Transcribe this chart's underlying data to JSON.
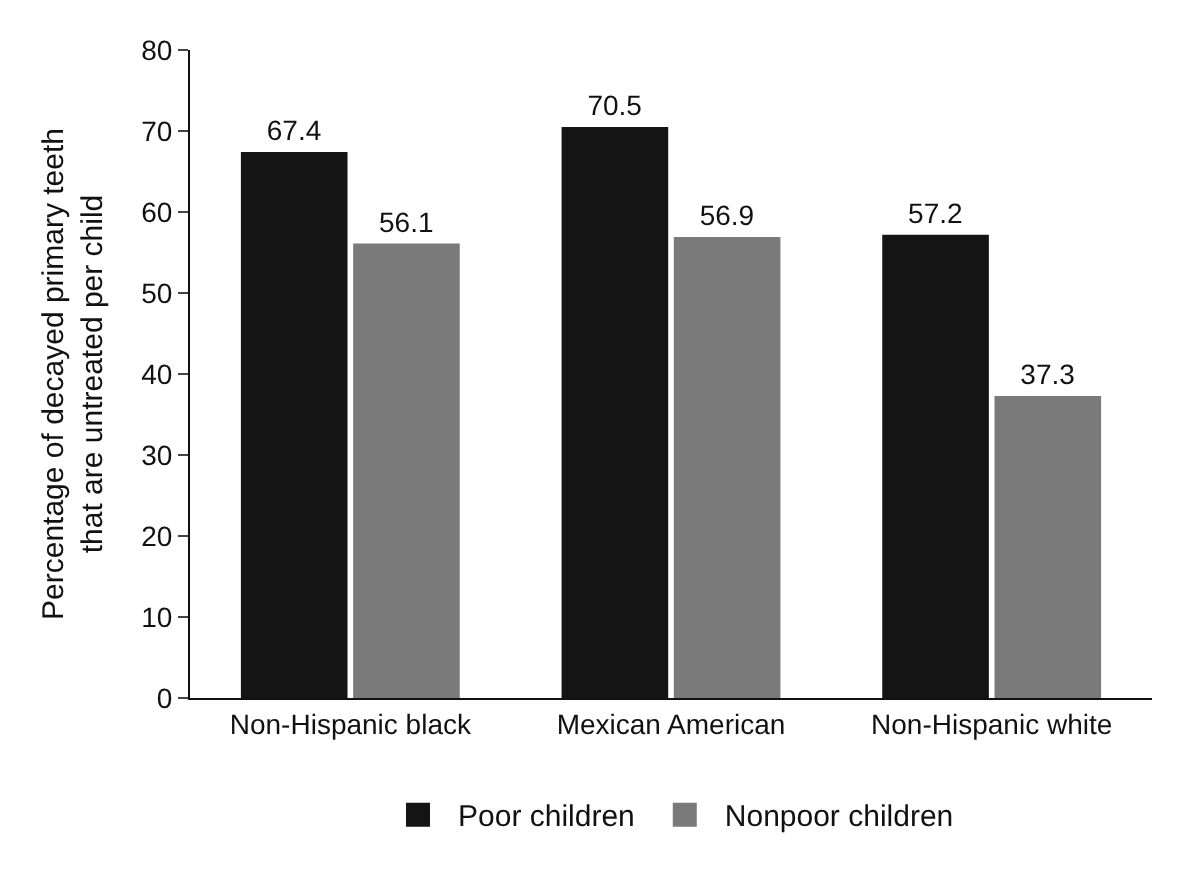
{
  "chart_data": {
    "type": "bar",
    "ylabel": "Percentage of decayed primary teeth\nthat are untreated per child",
    "categories": [
      "Non-Hispanic black",
      "Mexican American",
      "Non-Hispanic white"
    ],
    "series": [
      {
        "name": "Poor children",
        "color": "#141414",
        "values": [
          67.4,
          70.5,
          57.2
        ]
      },
      {
        "name": "Nonpoor children",
        "color": "#7a7a7a",
        "values": [
          56.1,
          56.9,
          37.3
        ]
      }
    ],
    "ylim": [
      0,
      80
    ],
    "yticks": [
      0,
      10,
      20,
      30,
      40,
      50,
      60,
      70,
      80
    ],
    "data_labels": true,
    "legend": "bottom"
  }
}
